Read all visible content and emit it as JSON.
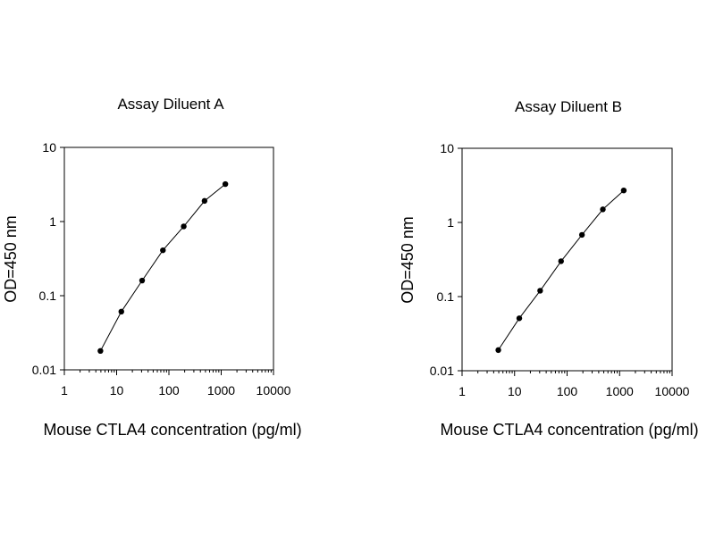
{
  "chart_data": [
    {
      "type": "line",
      "title": "Assay Diluent A",
      "xlabel": "Mouse CTLA4 concentration (pg/ml)",
      "ylabel": "OD=450 nm",
      "x_scale": "log",
      "y_scale": "log",
      "xlim": [
        1,
        10000
      ],
      "ylim": [
        0.01,
        10
      ],
      "x_ticks": [
        "1",
        "10",
        "100",
        "1000",
        "10000"
      ],
      "y_ticks": [
        "0.01",
        "0.1",
        "1",
        "10"
      ],
      "grid": false,
      "series": [
        {
          "x": [
            4.9,
            12.3,
            30.7,
            76.8,
            192,
            480,
            1200
          ],
          "y": [
            0.018,
            0.061,
            0.16,
            0.41,
            0.86,
            1.9,
            3.2
          ]
        }
      ]
    },
    {
      "type": "line",
      "title": "Assay Diluent B",
      "xlabel": "Mouse CTLA4 concentration (pg/ml)",
      "ylabel": "OD=450 nm",
      "x_scale": "log",
      "y_scale": "log",
      "xlim": [
        1,
        10000
      ],
      "ylim": [
        0.01,
        10
      ],
      "x_ticks": [
        "1",
        "10",
        "100",
        "1000",
        "10000"
      ],
      "y_ticks": [
        "0.01",
        "0.1",
        "1",
        "10"
      ],
      "grid": false,
      "series": [
        {
          "x": [
            4.9,
            12.3,
            30.7,
            76.8,
            192,
            480,
            1200
          ],
          "y": [
            0.019,
            0.051,
            0.12,
            0.3,
            0.68,
            1.5,
            2.7
          ]
        }
      ]
    }
  ]
}
